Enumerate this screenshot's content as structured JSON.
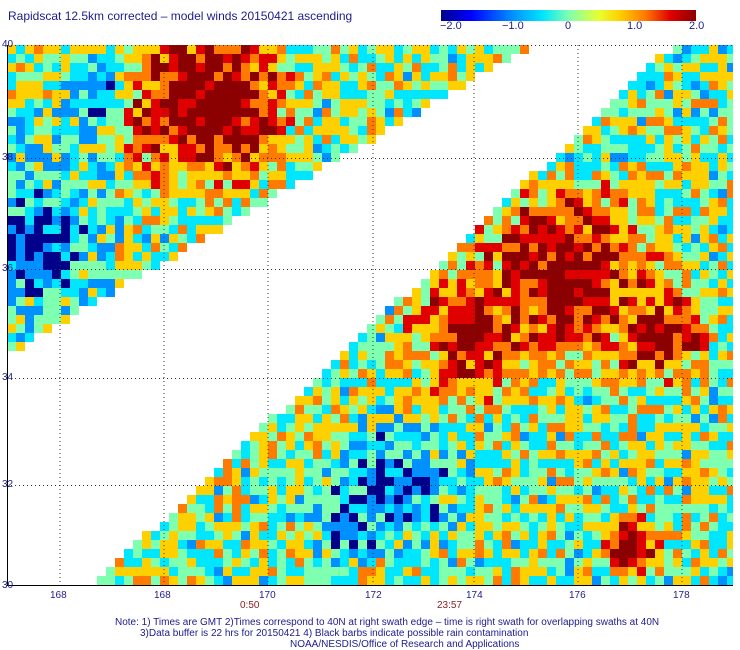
{
  "title": "Rapidscat 12.5km corrected – model winds 20150421 ascending",
  "colorbar": {
    "ticks": [
      "−2.0",
      "−1.0",
      "0",
      "1.0",
      "2.0"
    ]
  },
  "lat_labels": [
    "40",
    "38",
    "36",
    "34",
    "32",
    "30"
  ],
  "lon_labels": [
    "168",
    "168",
    "170",
    "172",
    "174",
    "176",
    "178"
  ],
  "time_labels": [
    "0:50",
    "23:57"
  ],
  "notes": [
    "Note: 1) Times are GMT 2)Times correspond to 40N at right swath edge – time is right swath for overlapping swaths at 40N",
    "3)Data buffer is 22 hrs for 20150421 4) Black barbs indicate possible rain contamination",
    "NOAA/NESDIS/Office of Research and Applications"
  ],
  "colors": {
    "deep_red": "#8b0000",
    "red": "#e00000",
    "orange": "#ff7a00",
    "yellow": "#ffd000",
    "green": "#7fffb0",
    "cyan": "#00e6ff",
    "blue": "#0090ff",
    "dark_blue": "#00008b"
  }
}
